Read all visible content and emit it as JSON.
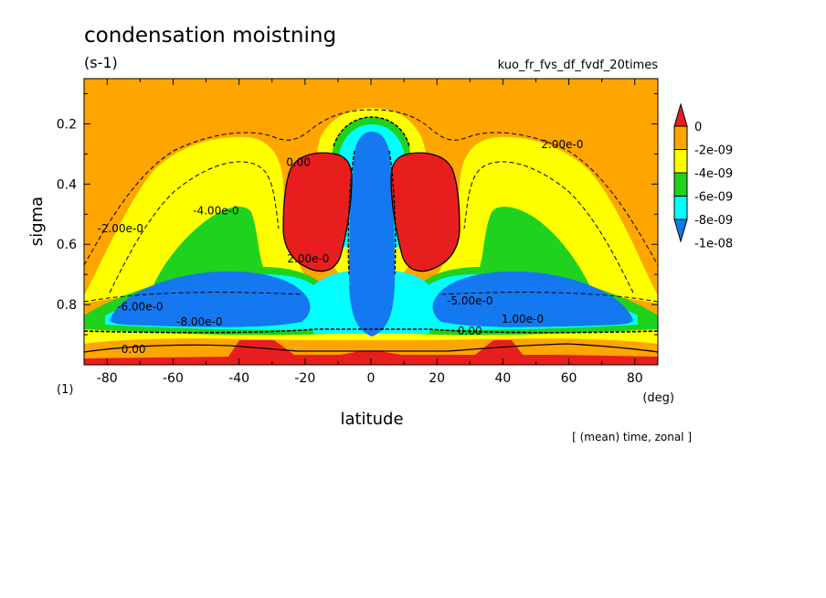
{
  "title": "condensation moistning",
  "units": "(s-1)",
  "experiment": "kuo_fr_fvs_df_fvdf_20times",
  "footer": "[ (mean) time, zonal ]",
  "colors": {
    "red": "#e81e1e",
    "orange": "#ffa500",
    "yellow": "#ffff00",
    "green": "#1ed21e",
    "cyan": "#00ffff",
    "blue": "#1478f0",
    "line": "#000000"
  },
  "chart_data": {
    "type": "contour",
    "title": "condensation moistning",
    "xlabel": "latitude",
    "ylabel": "sigma",
    "x_unit": "(deg)",
    "y_unit": "(1)",
    "xlim": [
      -87,
      87
    ],
    "ylim": [
      1.0,
      0.05
    ],
    "x_ticks": [
      -80,
      -60,
      -40,
      -20,
      0,
      20,
      40,
      60,
      80
    ],
    "y_ticks": [
      0.2,
      0.4,
      0.6,
      0.8
    ],
    "x_tick_labels": [
      "-80",
      "-60",
      "-40",
      "-20",
      "0",
      "20",
      "40",
      "60",
      "80"
    ],
    "y_tick_labels": [
      "0.2",
      "0.4",
      "0.6",
      "0.8"
    ],
    "legend": {
      "labels": [
        "0",
        "-2e-09",
        "-4e-09",
        "-6e-09",
        "-8e-09",
        "-1e-08"
      ],
      "bins": [
        "red",
        "orange",
        "yellow",
        "green",
        "cyan",
        "blue"
      ]
    },
    "contour_labels": [
      {
        "text": "2.00e-0",
        "lat": 58,
        "sigma": 0.28
      },
      {
        "text": "-2.00e-0",
        "lat": -76,
        "sigma": 0.56
      },
      {
        "text": "-4.00e-0",
        "lat": -47,
        "sigma": 0.5
      },
      {
        "text": "-6.00e-0",
        "lat": -70,
        "sigma": 0.82
      },
      {
        "text": "-8.00e-0",
        "lat": -52,
        "sigma": 0.87
      },
      {
        "text": "0.00",
        "lat": -72,
        "sigma": 0.96
      },
      {
        "text": "0.00",
        "lat": -22,
        "sigma": 0.34
      },
      {
        "text": "-5.00e-0",
        "lat": 30,
        "sigma": 0.8
      },
      {
        "text": "1.00e-0",
        "lat": 46,
        "sigma": 0.86
      },
      {
        "text": "0.00",
        "lat": 30,
        "sigma": 0.9
      },
      {
        "text": "2.00e-0",
        "lat": -19,
        "sigma": 0.66
      }
    ]
  }
}
